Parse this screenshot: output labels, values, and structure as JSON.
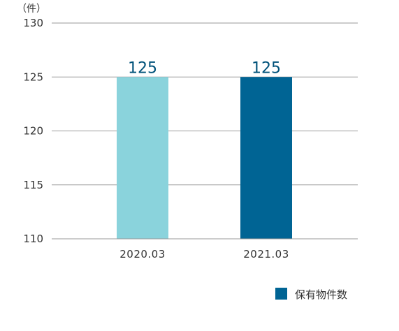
{
  "chart_data": {
    "type": "bar",
    "unit_label": "（件）",
    "categories": [
      "2020.03",
      "2021.03"
    ],
    "values": [
      125,
      125
    ],
    "data_labels": [
      "125",
      "125"
    ],
    "bar_colors": [
      "#8ad3dc",
      "#006494"
    ],
    "yticks": [
      110,
      115,
      120,
      125,
      130
    ],
    "ylim": [
      110,
      130
    ],
    "grid": true,
    "legend": {
      "position": "bottom-right",
      "entries": [
        {
          "label": "保有物件数",
          "color": "#006494"
        }
      ]
    }
  }
}
